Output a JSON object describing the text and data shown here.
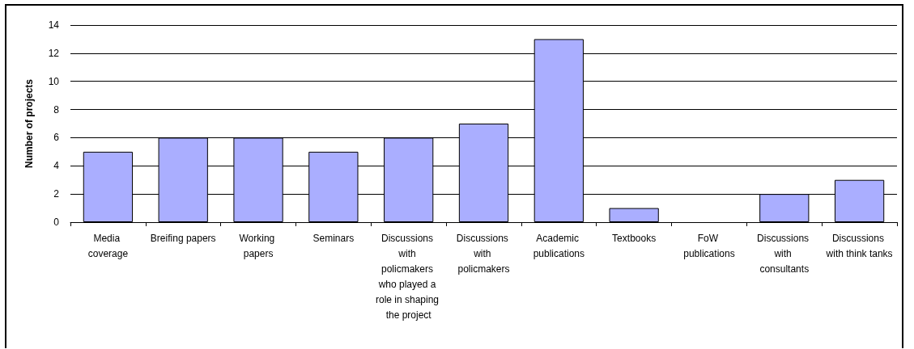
{
  "chart_data": {
    "type": "bar",
    "ylabel": "Number of projects",
    "categories": [
      "Media coverage",
      "Breifing papers",
      "Working papers",
      "Seminars",
      "Discussions with policmakers who played a role in shaping the project",
      "Discussions with policmakers",
      "Academic publications",
      "Textbooks",
      "FoW publications",
      "Discussions with consultants",
      "Discussions with think tanks"
    ],
    "values": [
      5,
      6,
      6,
      5,
      6,
      7,
      13,
      1,
      0,
      2,
      3
    ],
    "color": "#aaaeff",
    "ylim": [
      0,
      14
    ],
    "yticks": [
      0,
      2,
      4,
      6,
      8,
      10,
      12,
      14
    ],
    "grid": "y"
  }
}
